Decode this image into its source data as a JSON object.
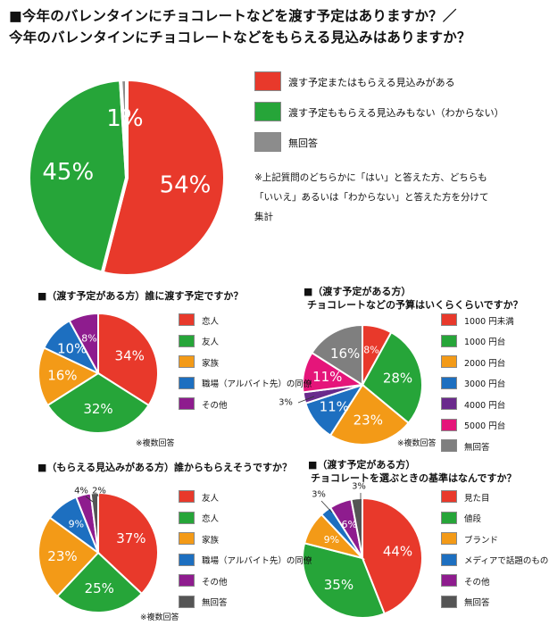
{
  "title": {
    "line1": "■今年のバレンタインにチョコレートなどを渡す予定はありますか？／",
    "line2": "今年のバレンタインにチョコレートなどをもらえる見込みはありますか？"
  },
  "footnote": {
    "line1": "※上記質問のどちらかに「はい」と答えた方、どちらも",
    "line2": "「いいえ」あるいは「わからない」と答えた方を分けて",
    "line3": "集計"
  },
  "chart_data": [
    {
      "id": "main",
      "type": "pie",
      "title": "",
      "slices": [
        {
          "label": "渡す予定またはもらえる見込みがある",
          "value": 54,
          "display": "54%",
          "color": "#e8392b"
        },
        {
          "label": "渡す予定ももらえる見込みもない（わからない）",
          "value": 45,
          "display": "45%",
          "color": "#26a539"
        },
        {
          "label": "無回答",
          "value": 1,
          "display": "1%",
          "color": "#8c8c8c"
        }
      ],
      "legend": "right"
    },
    {
      "id": "give-to",
      "type": "pie",
      "title": "■（渡す予定がある方）誰に渡す予定ですか？",
      "note": "※複数回答",
      "slices": [
        {
          "label": "恋人",
          "value": 34,
          "display": "34%",
          "color": "#e8392b"
        },
        {
          "label": "友人",
          "value": 32,
          "display": "32%",
          "color": "#26a539"
        },
        {
          "label": "家族",
          "value": 16,
          "display": "16%",
          "color": "#f39a17"
        },
        {
          "label": "職場（アルバイト先）の同僚",
          "value": 10,
          "display": "10%",
          "color": "#1d6fc0"
        },
        {
          "label": "その他",
          "value": 8,
          "display": "8%",
          "color": "#8e1c8e"
        }
      ],
      "legend": "right"
    },
    {
      "id": "budget",
      "type": "pie",
      "title_line1": "■（渡す予定がある方）",
      "title_line2": "チョコレートなどの予算はいくらくらいですか？",
      "note": "※複数回答",
      "slices": [
        {
          "label": "1000 円未満",
          "value": 8,
          "display": "8%",
          "color": "#e8392b"
        },
        {
          "label": "1000 円台",
          "value": 28,
          "display": "28%",
          "color": "#26a539"
        },
        {
          "label": "2000 円台",
          "value": 23,
          "display": "23%",
          "color": "#f39a17"
        },
        {
          "label": "3000 円台",
          "value": 11,
          "display": "11%",
          "color": "#1d6fc0"
        },
        {
          "label": "4000 円台",
          "value": 3,
          "display": "3%",
          "color": "#6a2a8c"
        },
        {
          "label": "5000 円台",
          "value": 11,
          "display": "11%",
          "color": "#e5157a"
        },
        {
          "label": "無回答",
          "value": 16,
          "display": "16%",
          "color": "#7f7f7f"
        }
      ],
      "legend": "right"
    },
    {
      "id": "receive-from",
      "type": "pie",
      "title": "■（もらえる見込みがある方）誰からもらえそうですか？",
      "note": "※複数回答",
      "slices": [
        {
          "label": "友人",
          "value": 37,
          "display": "37%",
          "color": "#e8392b"
        },
        {
          "label": "恋人",
          "value": 25,
          "display": "25%",
          "color": "#26a539"
        },
        {
          "label": "家族",
          "value": 23,
          "display": "23%",
          "color": "#f39a17"
        },
        {
          "label": "職場（アルバイト先）の同僚",
          "value": 9,
          "display": "9%",
          "color": "#1d6fc0"
        },
        {
          "label": "その他",
          "value": 4,
          "display": "4%",
          "color": "#8e1c8e"
        },
        {
          "label": "無回答",
          "value": 2,
          "display": "2%",
          "color": "#555555"
        }
      ],
      "legend": "right"
    },
    {
      "id": "criteria",
      "type": "pie",
      "title_line1": "■（渡す予定がある方）",
      "title_line2": "チョコレートを選ぶときの基準はなんですか？",
      "slices": [
        {
          "label": "見た目",
          "value": 44,
          "display": "44%",
          "color": "#e8392b"
        },
        {
          "label": "値段",
          "value": 35,
          "display": "35%",
          "color": "#26a539"
        },
        {
          "label": "ブランド",
          "value": 9,
          "display": "9%",
          "color": "#f39a17"
        },
        {
          "label": "メディアで話題のもの",
          "value": 3,
          "display": "3%",
          "color": "#1d6fc0"
        },
        {
          "label": "その他",
          "value": 6,
          "display": "6%",
          "color": "#8e1c8e"
        },
        {
          "label": "無回答",
          "value": 3,
          "display": "3%",
          "color": "#555555"
        }
      ],
      "legend": "right"
    }
  ]
}
